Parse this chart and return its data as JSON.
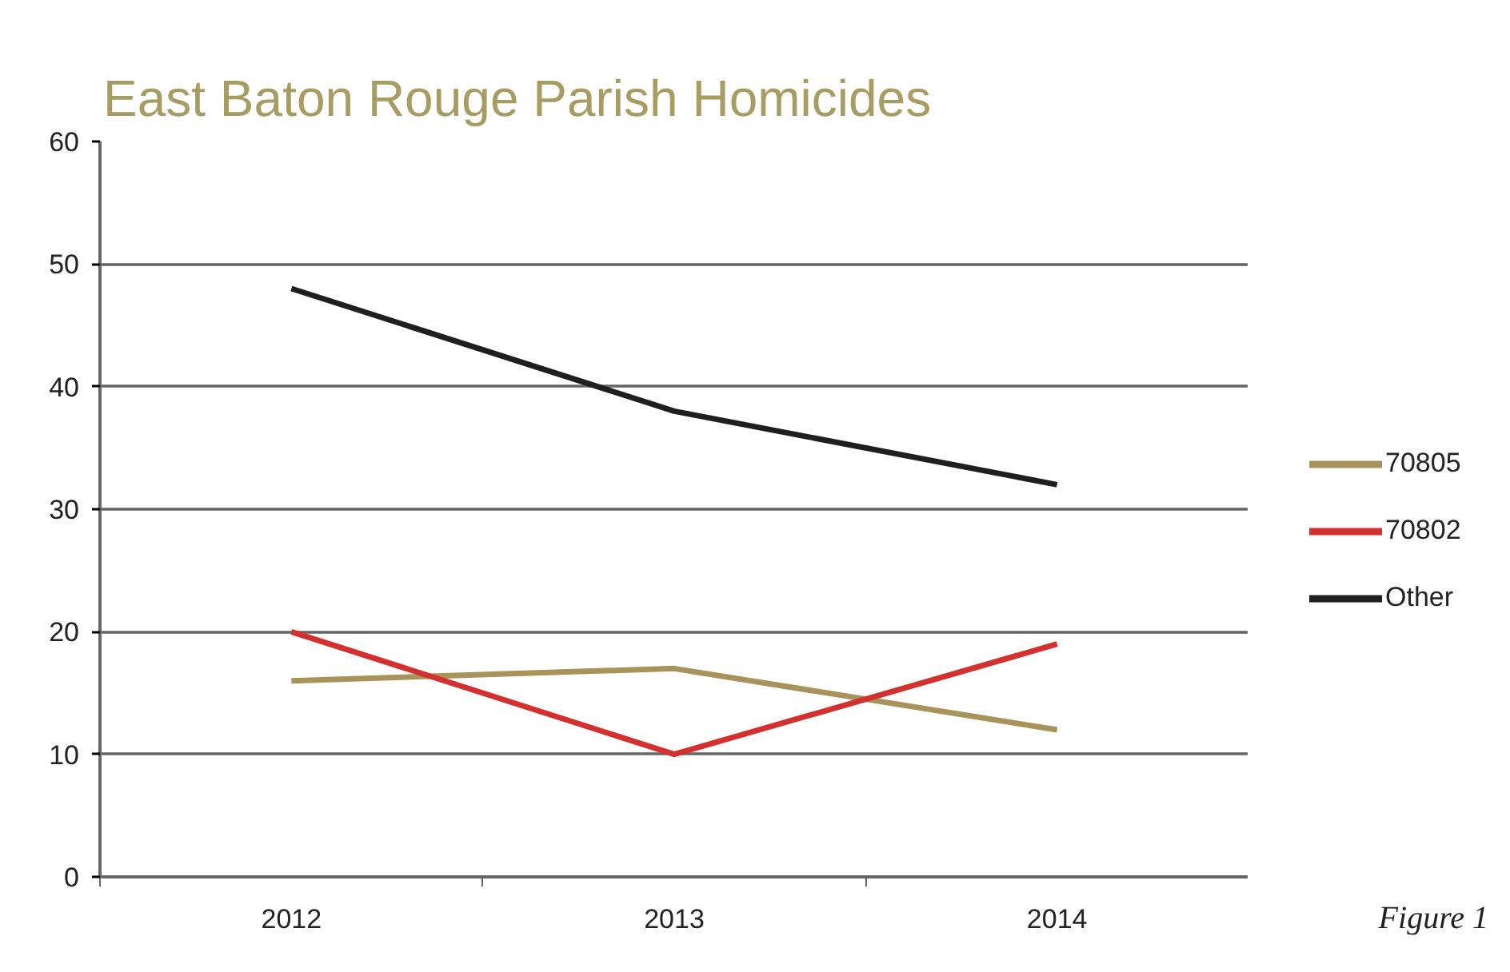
{
  "chart_data": {
    "type": "line",
    "title": "East Baton Rouge Parish Homicides",
    "categories": [
      "2012",
      "2013",
      "2014"
    ],
    "series": [
      {
        "name": "70805",
        "color": "#a8935a",
        "values": [
          16,
          17,
          12
        ]
      },
      {
        "name": "70802",
        "color": "#d2312f",
        "values": [
          20,
          10,
          19
        ]
      },
      {
        "name": "Other",
        "color": "#1f1f1f",
        "values": [
          48,
          38,
          32
        ]
      }
    ],
    "ylim": [
      0,
      60
    ],
    "yticks": [
      0,
      10,
      20,
      30,
      40,
      50,
      60
    ],
    "grid": "y",
    "legend": "right",
    "line_style": "solid",
    "annotations": [
      "Figure 1"
    ]
  }
}
